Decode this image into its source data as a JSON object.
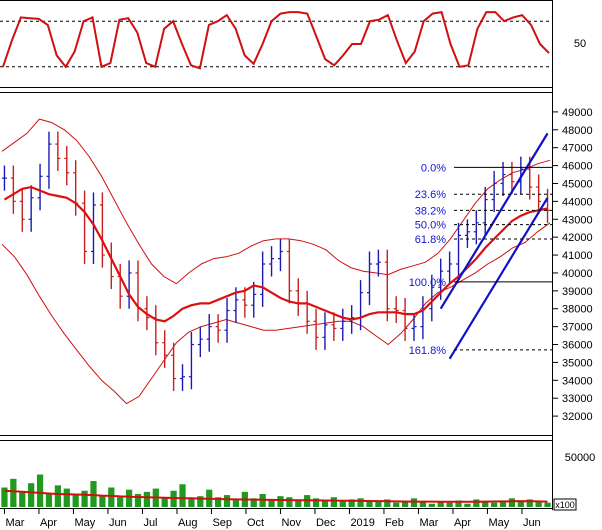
{
  "chart_data": {
    "type": "line",
    "colors": {
      "price_up": "#1b1bb4",
      "price_down": "#c81e1e",
      "bollinger": "#d01010",
      "moving_average": "#dd1010",
      "trend_channel": "#1010c8",
      "fibonacci": "#1414d2",
      "volume": "#1f9a1f",
      "oscillator": "#d01010"
    },
    "oscillator": {
      "yticks": [
        "50"
      ],
      "levels": [
        20,
        80
      ],
      "ylim": [
        0,
        100
      ],
      "series": [
        20,
        55,
        85,
        84,
        83,
        75,
        35,
        20,
        40,
        80,
        85,
        20,
        25,
        82,
        84,
        65,
        25,
        20,
        70,
        80,
        50,
        22,
        18,
        75,
        80,
        88,
        70,
        35,
        24,
        50,
        80,
        90,
        92,
        92,
        90,
        60,
        30,
        22,
        35,
        50,
        50,
        80,
        82,
        88,
        55,
        25,
        40,
        80,
        90,
        92,
        50,
        20,
        22,
        70,
        92,
        92,
        80,
        85,
        88,
        75,
        50,
        38
      ]
    },
    "price": {
      "ylim": [
        31000,
        50000
      ],
      "yticks": [
        32000,
        33000,
        34000,
        35000,
        36000,
        37000,
        38000,
        39000,
        40000,
        41000,
        42000,
        43000,
        44000,
        45000,
        46000,
        47000,
        48000,
        49000
      ],
      "close": [
        45300,
        44000,
        43000,
        44200,
        45400,
        47200,
        46400,
        45600,
        43900,
        41200,
        43800,
        41000,
        39800,
        38700,
        40000,
        38000,
        37500,
        36100,
        35400,
        34100,
        34200,
        36000,
        36300,
        37000,
        36800,
        37900,
        38500,
        38200,
        38800,
        40500,
        40800,
        41200,
        39000,
        38300,
        37300,
        36400,
        37100,
        36900,
        37300,
        37500,
        38900,
        40500,
        40600,
        38000,
        37900,
        36900,
        37000,
        38000,
        39200,
        40100,
        40500,
        42100,
        42300,
        42800,
        44100,
        45000,
        45500,
        45100,
        45800,
        44800,
        44000,
        43500
      ],
      "ma": [
        44100,
        44400,
        44700,
        44800,
        44600,
        44400,
        44300,
        44200,
        43900,
        43400,
        42700,
        41800,
        40800,
        39800,
        38800,
        38100,
        37700,
        37400,
        37300,
        37600,
        38000,
        38200,
        38300,
        38300,
        38500,
        38700,
        38900,
        39000,
        39300,
        39200,
        38900,
        38600,
        38400,
        38300,
        38300,
        38100,
        37900,
        37700,
        37500,
        37400,
        37500,
        37700,
        37800,
        37800,
        37800,
        37700,
        37700,
        37900,
        38400,
        38900,
        39400,
        39800,
        40300,
        40800,
        41400,
        41900,
        42400,
        42900,
        43200,
        43400,
        43500,
        43600
      ],
      "bb_upper": [
        46800,
        47300,
        47800,
        48600,
        48400,
        48000,
        47400,
        46500,
        45400,
        44100,
        42800,
        41600,
        40500,
        39800,
        39400,
        40000,
        40500,
        40800,
        40900,
        41100,
        41500,
        41800,
        41900,
        41900,
        41800,
        41600,
        41300,
        40700,
        40300,
        40100,
        40000,
        39900,
        40200,
        40400,
        40600,
        41100,
        41900,
        42900,
        43900,
        44700,
        45200,
        45600,
        45800,
        46100,
        46300
      ],
      "bb_lower": [
        41600,
        40900,
        39900,
        38700,
        37600,
        36600,
        35700,
        34800,
        34000,
        33400,
        32700,
        33100,
        34100,
        35100,
        36100,
        36700,
        37000,
        37200,
        37400,
        37200,
        37000,
        36800,
        36800,
        36900,
        37000,
        37100,
        37200,
        37300,
        37300,
        37000,
        36500,
        36000,
        36600,
        37400,
        38300,
        38900,
        39200,
        39600,
        40000,
        40500,
        40900,
        41400,
        41700,
        42300,
        42800
      ],
      "trend_channel": {
        "upper": [
          [
            49,
            38000
          ],
          [
            61,
            47800
          ]
        ],
        "lower": [
          [
            50,
            35200
          ],
          [
            61,
            44200
          ]
        ]
      },
      "fibonacci": [
        {
          "label": "0.0%",
          "value": 45900
        },
        {
          "label": "23.6%",
          "value": 44400
        },
        {
          "label": "38.2%",
          "value": 43500
        },
        {
          "label": "50.0%",
          "value": 42700
        },
        {
          "label": "61.8%",
          "value": 41900
        },
        {
          "label": "100.0%",
          "value": 39500
        },
        {
          "label": "161.8%",
          "value": 35700
        }
      ]
    },
    "volume": {
      "yticks": [
        "50000"
      ],
      "unit_label": "x100",
      "ylim": [
        0,
        60000
      ],
      "values": [
        18000,
        26000,
        14000,
        22000,
        30000,
        12000,
        20000,
        17000,
        11000,
        15000,
        24000,
        10000,
        18000,
        9000,
        16000,
        12000,
        14000,
        17000,
        9000,
        15000,
        21000,
        8000,
        10000,
        16000,
        9000,
        11000,
        7000,
        14000,
        8000,
        12000,
        6000,
        10000,
        9000,
        7000,
        11000,
        8000,
        6000,
        9000,
        5000,
        7000,
        8000,
        5000,
        6000,
        7000,
        4000,
        6000,
        8000,
        5000,
        3000,
        5000,
        4000,
        6000,
        3000,
        7000,
        5000,
        4000,
        6000,
        8000,
        6000,
        7000,
        5000,
        4000
      ],
      "ma": [
        15000,
        14500,
        14000,
        13500,
        13000,
        12500,
        12000,
        11800,
        11500,
        11300,
        11000,
        10500,
        10200,
        9800,
        9500,
        9200,
        9000,
        8800,
        8500,
        8300,
        8100,
        8000,
        7800,
        7600,
        7400,
        7200,
        7000,
        6900,
        6800,
        6700,
        6600,
        6500,
        6400,
        6300,
        6200,
        6100,
        6000,
        5900,
        5800,
        5700,
        5600,
        5500,
        5400,
        5300,
        5200,
        5100,
        5000,
        5000,
        4950,
        4900,
        4850,
        4800,
        4850,
        4900,
        5000,
        5100,
        5200,
        5300,
        5400,
        5300,
        5200,
        5000
      ]
    },
    "x_axis": {
      "months": [
        "Mar",
        "Apr",
        "May",
        "Jun",
        "Jul",
        "Aug",
        "Sep",
        "Oct",
        "Nov",
        "Dec",
        "2019",
        "Feb",
        "Mar",
        "Apr",
        "May",
        "Jun"
      ]
    }
  }
}
